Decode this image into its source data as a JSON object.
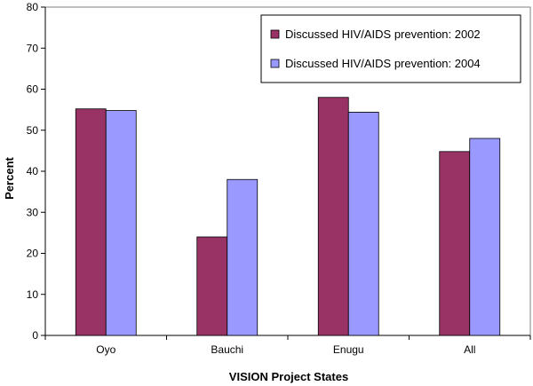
{
  "chart_data": {
    "type": "bar",
    "title": "",
    "xlabel": "VISION Project States",
    "ylabel": "Percent",
    "categories": [
      "Oyo",
      "Bauchi",
      "Enugu",
      "All"
    ],
    "series": [
      {
        "name": "Discussed HIV/AIDS prevention: 2002",
        "values": [
          55.2,
          24.0,
          58.0,
          44.8
        ],
        "color": "#993366"
      },
      {
        "name": "Discussed HIV/AIDS prevention: 2004",
        "values": [
          54.8,
          38.0,
          54.4,
          48.0
        ],
        "color": "#9999ff"
      }
    ],
    "ylim": [
      0,
      80
    ],
    "yticks": [
      0,
      10,
      20,
      30,
      40,
      50,
      60,
      70,
      80
    ],
    "grid": false,
    "legend_position": "top-right"
  }
}
